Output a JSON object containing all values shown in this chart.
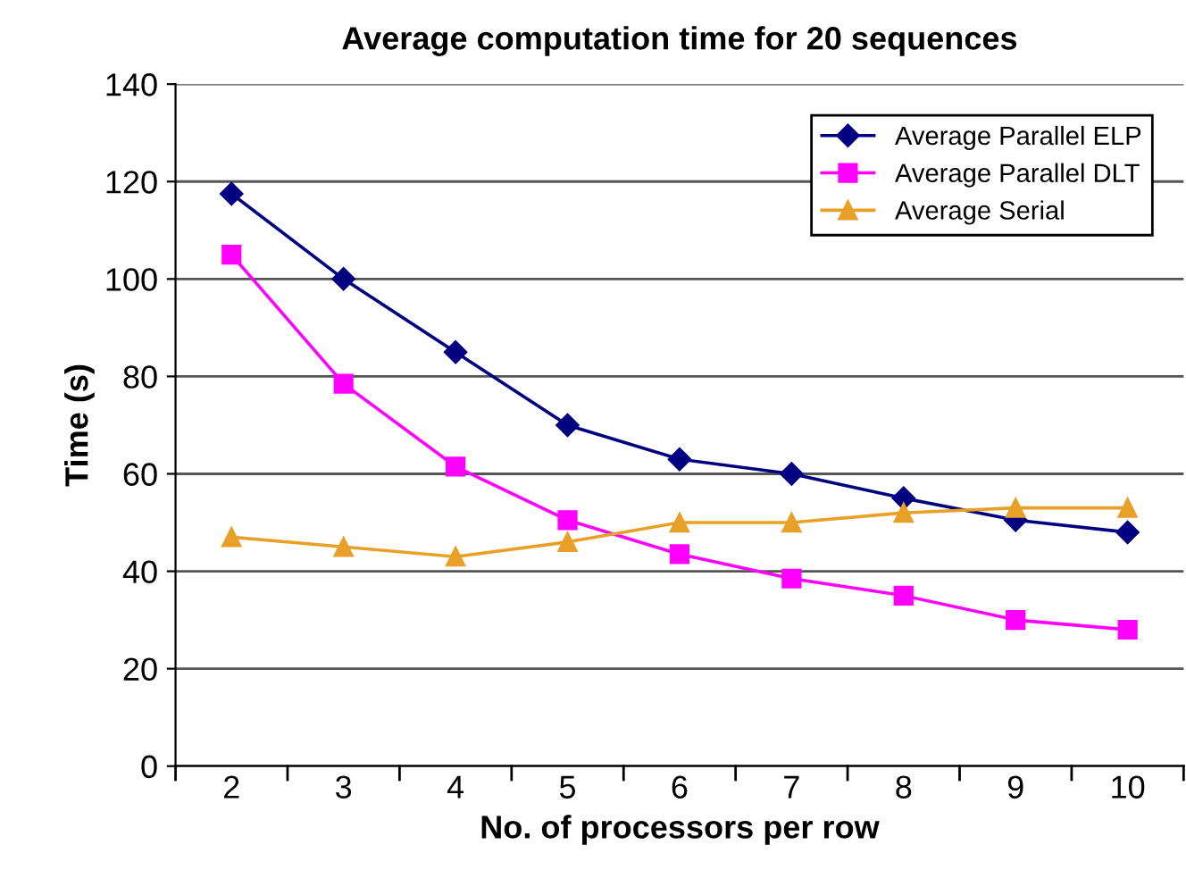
{
  "chart_data": {
    "type": "line",
    "title": "Average computation time for 20 sequences",
    "xlabel": "No. of processors per row",
    "ylabel": "Time (s)",
    "categories": [
      "2",
      "3",
      "4",
      "5",
      "6",
      "7",
      "8",
      "9",
      "10"
    ],
    "series": [
      {
        "name": "Average Parallel ELP",
        "color": "#000080",
        "marker": "diamond",
        "values": [
          117.5,
          100,
          85,
          70,
          63,
          60,
          55,
          50.5,
          48
        ]
      },
      {
        "name": "Average Parallel DLT",
        "color": "#ff00ff",
        "marker": "square",
        "values": [
          105,
          78.5,
          61.5,
          50.5,
          43.5,
          38.5,
          35,
          30,
          28
        ]
      },
      {
        "name": "Average Serial",
        "color": "#e8a028",
        "marker": "triangle",
        "values": [
          47,
          45,
          43,
          46,
          50,
          50,
          52,
          53,
          53
        ]
      }
    ],
    "ylim": [
      0,
      140
    ],
    "yticks": [
      0,
      20,
      40,
      60,
      80,
      100,
      120,
      140
    ],
    "grid": "y",
    "legend": "top right",
    "line_style": "solid"
  }
}
